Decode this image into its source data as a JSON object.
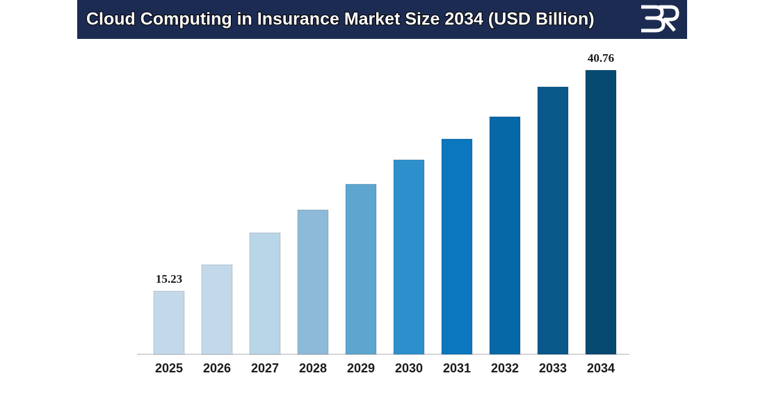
{
  "chart_data": {
    "type": "bar",
    "title": "Cloud Computing in Insurance Market Size 2034 (USD Billion)",
    "categories": [
      "2025",
      "2026",
      "2027",
      "2028",
      "2029",
      "2030",
      "2031",
      "2032",
      "2033",
      "2034"
    ],
    "values": [
      15.23,
      18.28,
      21.97,
      24.62,
      27.59,
      30.4,
      32.81,
      35.38,
      38.83,
      40.76
    ],
    "value_labels": [
      "15.23",
      null,
      null,
      null,
      null,
      null,
      null,
      null,
      null,
      "40.76"
    ],
    "colors": [
      "#c3d9ea",
      "#c3d9ea",
      "#b9d5e8",
      "#8dbad9",
      "#5ea6d0",
      "#2d8fcb",
      "#0a77be",
      "#0668a6",
      "#08588a",
      "#064a72"
    ],
    "ylim": [
      7.93,
      40.76
    ]
  }
}
